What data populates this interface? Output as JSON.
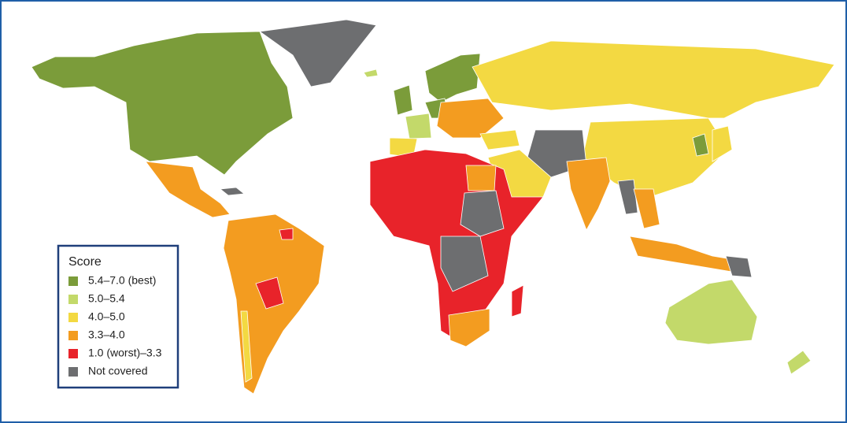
{
  "legend": {
    "title": "Score",
    "items": [
      {
        "label": "5.4–7.0 (best)",
        "color": "#7b9c3a"
      },
      {
        "label": "5.0–5.4",
        "color": "#c3d96a"
      },
      {
        "label": "4.0–5.0",
        "color": "#f3d942"
      },
      {
        "label": "3.3–4.0",
        "color": "#f39c20"
      },
      {
        "label": "1.0 (worst)–3.3",
        "color": "#e8232a"
      },
      {
        "label": "Not covered",
        "color": "#6d6e70"
      }
    ]
  }
}
